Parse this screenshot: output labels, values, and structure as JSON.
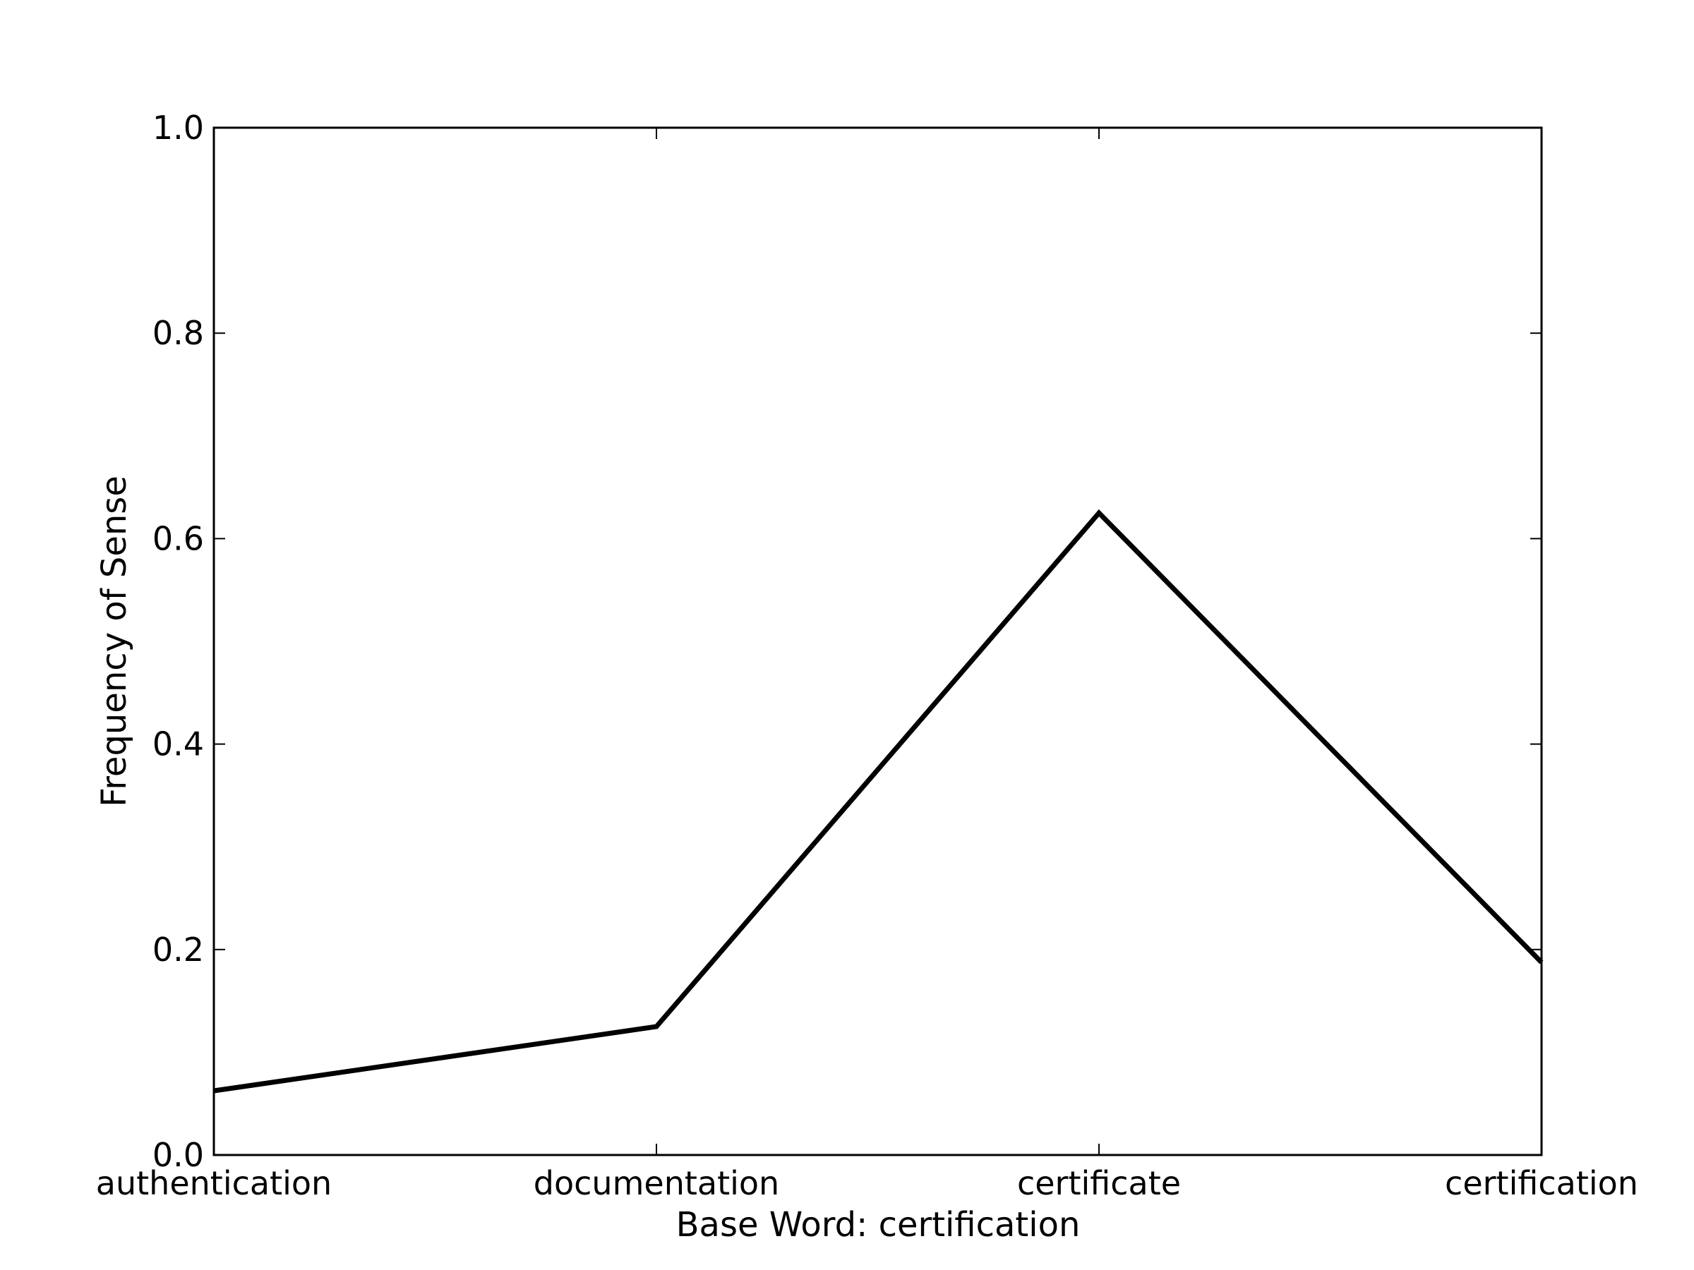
{
  "chart_data": {
    "type": "line",
    "categories": [
      "authentication",
      "documentation",
      "certificate",
      "certification"
    ],
    "series": [
      {
        "values": [
          0.0625,
          0.125,
          0.625,
          0.1875
        ],
        "color": "#000000"
      }
    ],
    "xlabel": "Base Word: certification",
    "ylabel": "Frequency of Sense",
    "ylim": [
      0.0,
      1.0
    ],
    "yticks": [
      "0.0",
      "0.2",
      "0.4",
      "0.6",
      "0.8",
      "1.0"
    ],
    "grid": false
  }
}
